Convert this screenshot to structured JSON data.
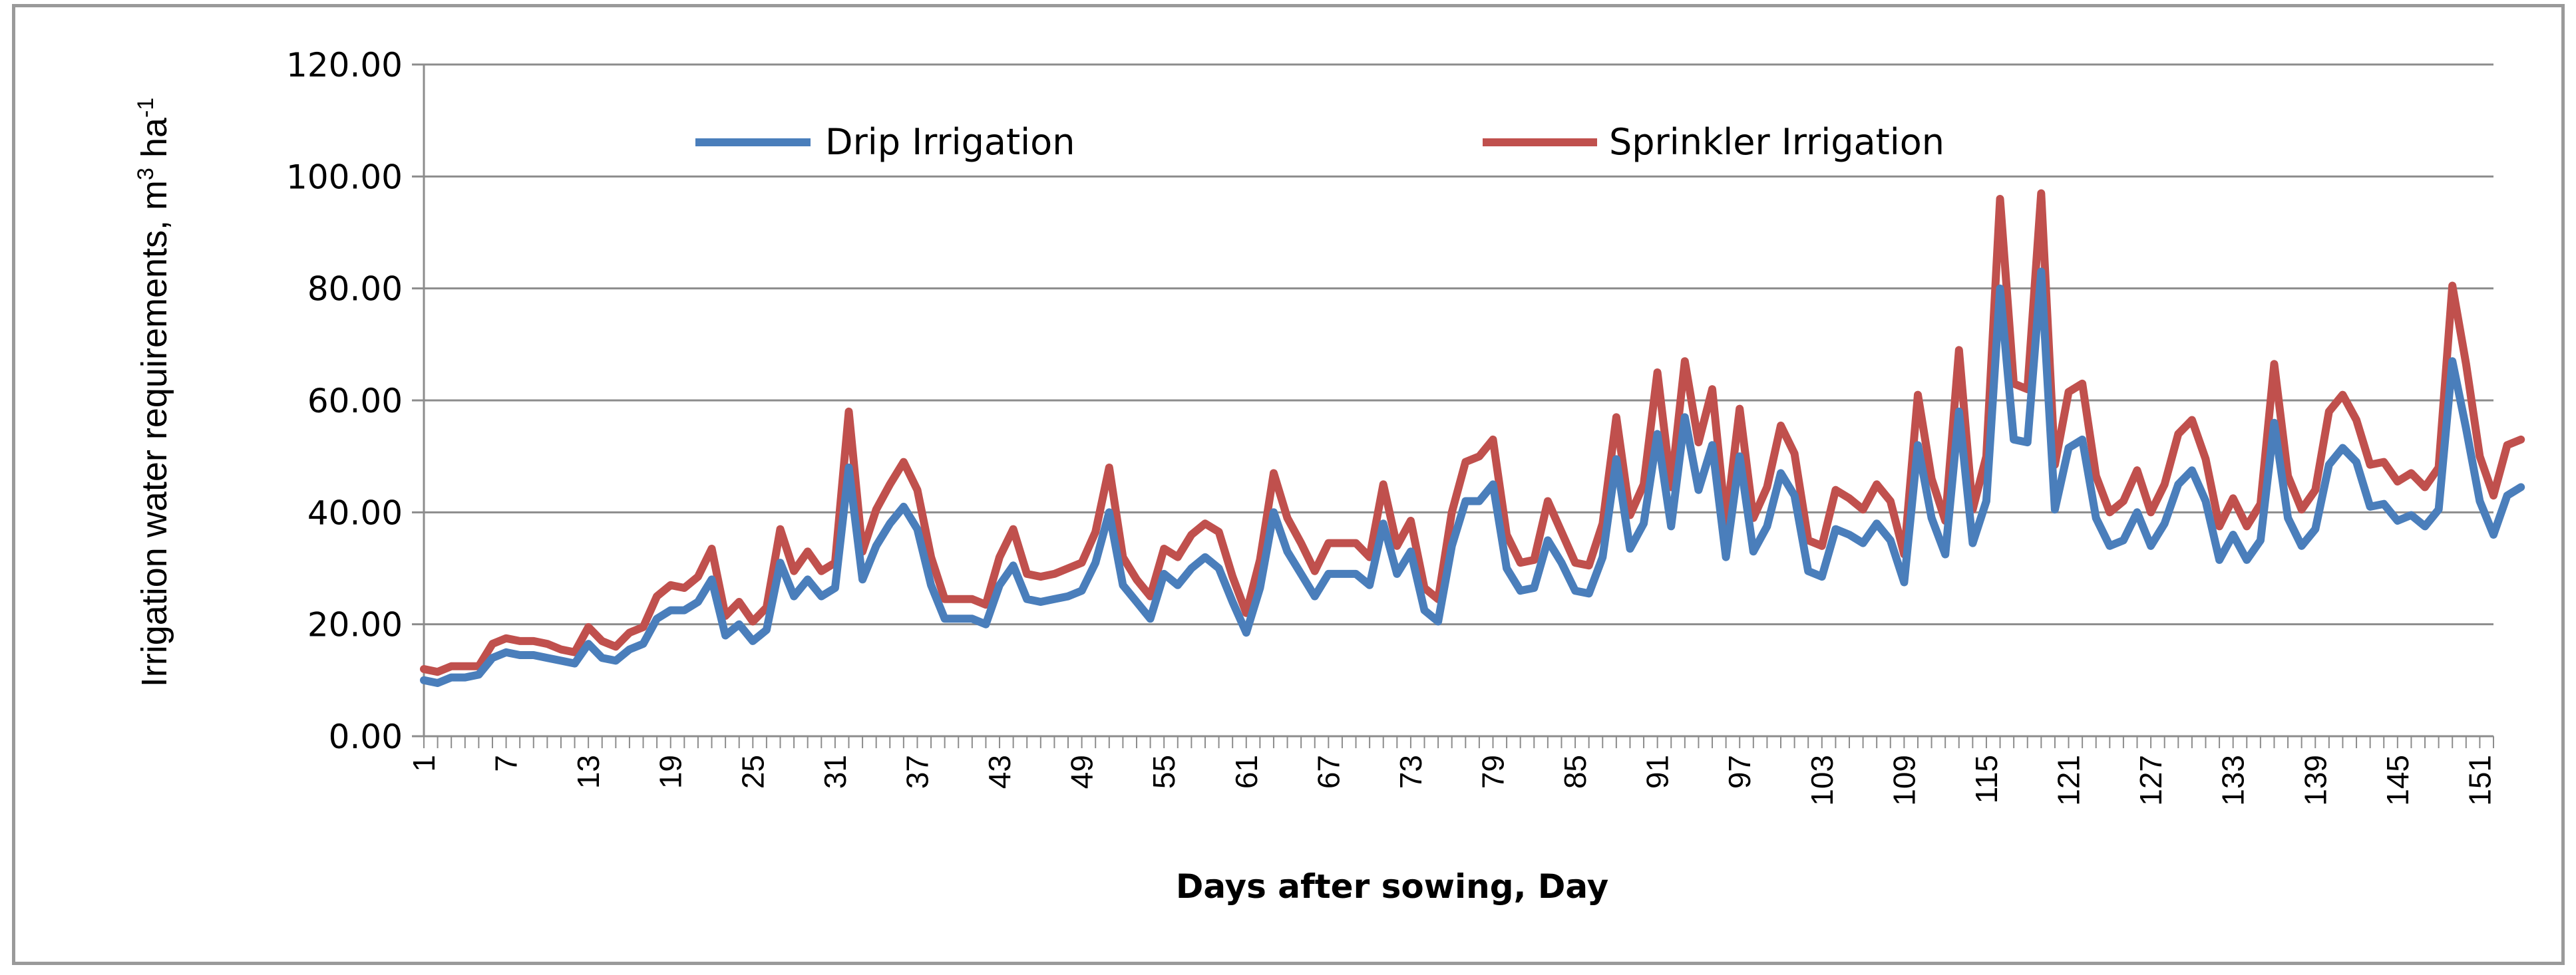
{
  "chart_data": {
    "type": "line",
    "xlabel": "Days after sowing, Day",
    "ylabel_main": "Irrigation water requirements, m",
    "ylabel_sup1": "3",
    "ylabel_mid": " ha",
    "ylabel_sup2": "-1",
    "ylim": [
      0,
      120
    ],
    "yticks": [
      "0.00",
      "20.00",
      "40.00",
      "60.00",
      "80.00",
      "100.00",
      "120.00"
    ],
    "xticks": [
      1,
      7,
      13,
      19,
      25,
      31,
      37,
      43,
      49,
      55,
      61,
      67,
      73,
      79,
      85,
      91,
      97,
      103,
      109,
      115,
      121,
      127,
      133,
      139,
      145,
      151
    ],
    "x_start": 1,
    "x_end": 152,
    "grid": "horizontal",
    "legend_position": "top",
    "series": [
      {
        "name": "Drip Irrigation",
        "color": "#4a7ebb",
        "values": [
          10,
          9.5,
          10.5,
          10.5,
          11,
          14,
          15,
          14.5,
          14.5,
          14,
          13.5,
          13,
          16.5,
          14,
          13.5,
          15.5,
          16.5,
          21,
          22.5,
          22.5,
          24,
          28,
          18,
          20,
          17,
          19,
          31,
          25,
          28,
          25,
          26.5,
          48,
          28,
          34,
          38,
          41,
          37,
          27,
          21,
          21,
          21,
          20,
          27,
          30.5,
          24.5,
          24,
          24.5,
          25,
          26,
          31,
          40,
          27,
          24,
          21,
          29,
          27,
          30,
          32,
          30,
          24,
          18.5,
          26.5,
          40,
          33,
          29,
          25,
          29,
          29,
          29,
          27,
          38,
          29,
          33,
          22.5,
          20.5,
          34,
          42,
          42,
          45,
          30,
          26,
          26.5,
          35,
          31,
          26,
          25.5,
          32,
          49.5,
          33.5,
          38,
          54,
          37.5,
          57,
          44,
          52,
          32,
          50,
          33,
          37.5,
          47,
          43,
          29.5,
          28.5,
          37,
          36,
          34.5,
          38,
          35,
          27.5,
          52,
          39,
          32.5,
          58,
          34.5,
          42,
          80,
          53,
          52.5,
          83,
          40.5,
          51.5,
          53,
          39,
          34,
          35,
          40,
          34,
          38,
          45,
          47.5,
          42,
          31.5,
          36,
          31.5,
          35,
          56,
          39,
          34,
          37,
          48.5,
          51.5,
          49,
          41,
          41.5,
          38.5,
          39.5,
          37.5,
          40.5,
          67,
          55,
          42,
          36,
          43,
          44.5
        ]
      },
      {
        "name": "Sprinkler Irrigation",
        "color": "#c0504d",
        "values": [
          12,
          11.5,
          12.5,
          12.5,
          12.5,
          16.5,
          17.5,
          17,
          17,
          16.5,
          15.5,
          15,
          19.5,
          17,
          16,
          18.5,
          19.5,
          25,
          27,
          26.5,
          28.5,
          33.5,
          21.5,
          24,
          20.5,
          23,
          37,
          29.5,
          33,
          29.5,
          31,
          58,
          33,
          40.5,
          45,
          49,
          44,
          32,
          24.5,
          24.5,
          24.5,
          23.5,
          32,
          37,
          29,
          28.5,
          29,
          30,
          31,
          36.5,
          48,
          32,
          28,
          25,
          33.5,
          32,
          36,
          38,
          36.5,
          28.5,
          22,
          31.5,
          47,
          39,
          34.5,
          29.5,
          34.5,
          34.5,
          34.5,
          32,
          45,
          34,
          38.5,
          26.5,
          24.5,
          40,
          49,
          50,
          53,
          36,
          31,
          31.5,
          42,
          36.5,
          31,
          30.5,
          38,
          57,
          39.5,
          45,
          65,
          44.5,
          67,
          52.5,
          62,
          38,
          58.5,
          39,
          44.5,
          55.5,
          50.5,
          35,
          34,
          44,
          42.5,
          40.5,
          45,
          42,
          32.5,
          61,
          46,
          38.5,
          69,
          40.5,
          50,
          96,
          63,
          62,
          97,
          48.5,
          61.5,
          63,
          46.5,
          40,
          42,
          47.5,
          40,
          45,
          54,
          56.5,
          49.5,
          37.5,
          42.5,
          37.5,
          41.5,
          66.5,
          46.5,
          40.5,
          44,
          58,
          61,
          56.5,
          48.5,
          49,
          45.5,
          47,
          44.5,
          48,
          80.5,
          66.5,
          50,
          43,
          52,
          53
        ]
      }
    ]
  }
}
